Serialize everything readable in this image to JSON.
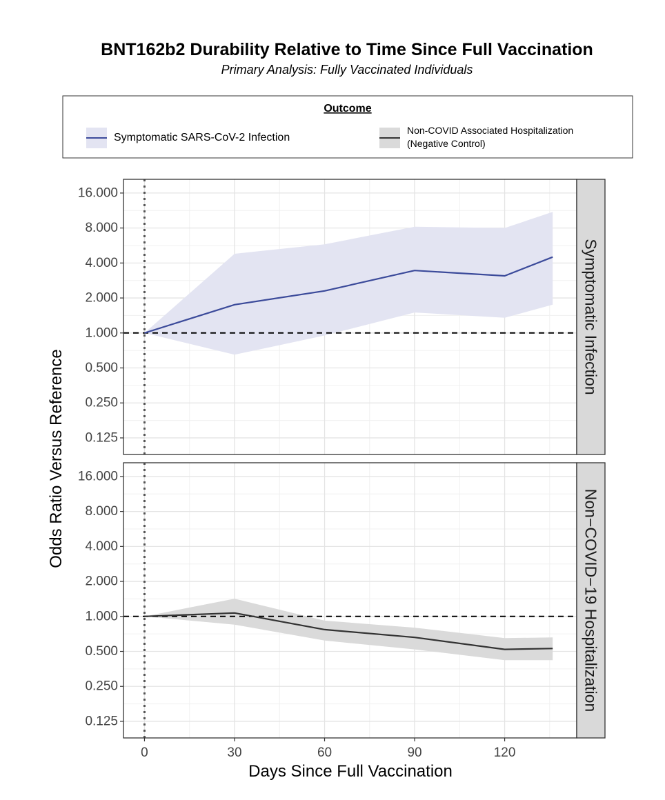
{
  "title": "BNT162b2 Durability Relative to Time Since Full Vaccination",
  "subtitle": "Primary Analysis: Fully Vaccinated Individuals",
  "legend": {
    "title": "Outcome",
    "items": [
      {
        "label": "Symptomatic SARS-CoV-2 Infection",
        "line_color": "#3b4a9a",
        "band_color": "#e3e4f2"
      },
      {
        "label_line1": "Non-COVID Associated Hospitalization",
        "label_line2": "(Negative Control)",
        "line_color": "#333333",
        "band_color": "#dadada"
      }
    ]
  },
  "chart_data": {
    "type": "line",
    "xlabel": "Days Since Full Vaccination",
    "ylabel": "Odds Ratio Versus Reference",
    "y_scale": "log2",
    "xlim": [
      -7,
      144
    ],
    "ylim": [
      0.09,
      21
    ],
    "x_ticks": [
      0,
      30,
      60,
      90,
      120
    ],
    "x_tick_labels": [
      "0",
      "30",
      "60",
      "90",
      "120"
    ],
    "y_ticks": [
      0.125,
      0.25,
      0.5,
      1,
      2,
      4,
      8,
      16
    ],
    "y_tick_labels": [
      "0.125",
      "0.250",
      "0.500",
      "1.000",
      "2.000",
      "4.000",
      "8.000",
      "16.000"
    ],
    "reference_line_y": 1,
    "reference_line_x": 0,
    "grid": true,
    "legend_position": "top",
    "panels": [
      {
        "strip_label": "Symptomatic Infection",
        "series_color": "#3b4a9a",
        "band_color": "#e3e4f2",
        "x": [
          0,
          30,
          60,
          90,
          120,
          136
        ],
        "y": [
          1.0,
          1.75,
          2.3,
          3.45,
          3.1,
          4.5
        ],
        "lower": [
          1.0,
          0.65,
          0.95,
          1.5,
          1.35,
          1.75
        ],
        "upper": [
          1.0,
          4.8,
          5.8,
          8.2,
          8.0,
          11.0
        ]
      },
      {
        "strip_label": "Non−COVID−19 Hospitalization",
        "series_color": "#333333",
        "band_color": "#dadada",
        "x": [
          0,
          30,
          60,
          90,
          120,
          136
        ],
        "y": [
          1.0,
          1.07,
          0.77,
          0.66,
          0.52,
          0.53
        ],
        "lower": [
          1.0,
          0.85,
          0.62,
          0.52,
          0.42,
          0.42
        ],
        "upper": [
          1.0,
          1.42,
          0.92,
          0.8,
          0.65,
          0.66
        ]
      }
    ]
  }
}
